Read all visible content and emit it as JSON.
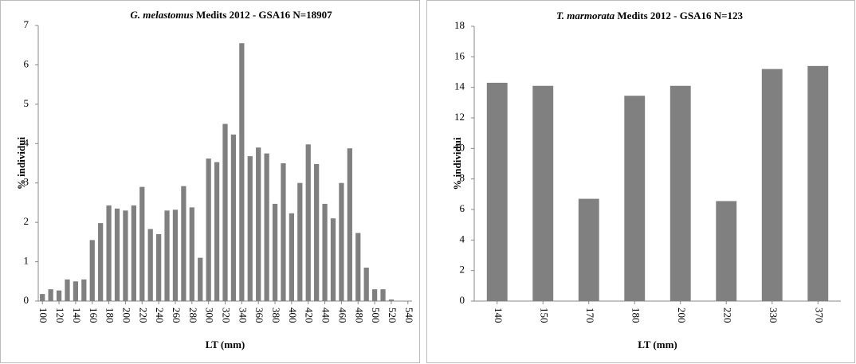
{
  "chart_data": [
    {
      "type": "bar",
      "title": "G. melastomus Medits 2012 - GSA16 N=18907",
      "title_italic": "G. melastomus",
      "x_label": "LT (mm)",
      "y_label": "% individui",
      "color": "#808080",
      "categories": [
        "100",
        null,
        "120",
        null,
        "140",
        null,
        "160",
        null,
        "180",
        null,
        "200",
        null,
        "220",
        null,
        "240",
        null,
        "260",
        null,
        "280",
        null,
        "300",
        null,
        "320",
        null,
        "340",
        null,
        "360",
        null,
        "380",
        null,
        "400",
        null,
        "420",
        null,
        "440",
        null,
        "460",
        null,
        "480",
        null,
        "500",
        null,
        "520",
        null,
        "540"
      ],
      "values": [
        0.18,
        0.3,
        0.27,
        0.55,
        0.5,
        0.55,
        1.55,
        1.98,
        2.43,
        2.35,
        2.3,
        2.43,
        2.9,
        1.83,
        1.7,
        2.3,
        2.32,
        2.92,
        2.38,
        1.1,
        3.62,
        3.53,
        4.5,
        4.23,
        6.55,
        3.68,
        3.9,
        3.75,
        2.47,
        3.5,
        2.23,
        3.0,
        3.98,
        3.48,
        2.47,
        2.1,
        3.0,
        3.88,
        1.73,
        0.85,
        0.3,
        0.3,
        0.04,
        null,
        null
      ],
      "ylim": [
        0,
        7
      ],
      "yticks": [
        0,
        1,
        2,
        3,
        4,
        5,
        6,
        7
      ]
    },
    {
      "type": "bar",
      "title": "T. marmorata Medits 2012 - GSA16 N=123",
      "title_italic": "T. marmorata",
      "x_label": "LT (mm)",
      "y_label": "% individui",
      "color": "#808080",
      "categories": [
        "140",
        "150",
        "170",
        "180",
        "200",
        "220",
        "330",
        "370"
      ],
      "values": [
        14.3,
        14.1,
        6.7,
        13.45,
        14.1,
        6.55,
        15.2,
        15.4
      ],
      "ylim": [
        0,
        18
      ],
      "yticks": [
        0,
        2,
        4,
        6,
        8,
        10,
        12,
        14,
        16,
        18
      ]
    }
  ]
}
